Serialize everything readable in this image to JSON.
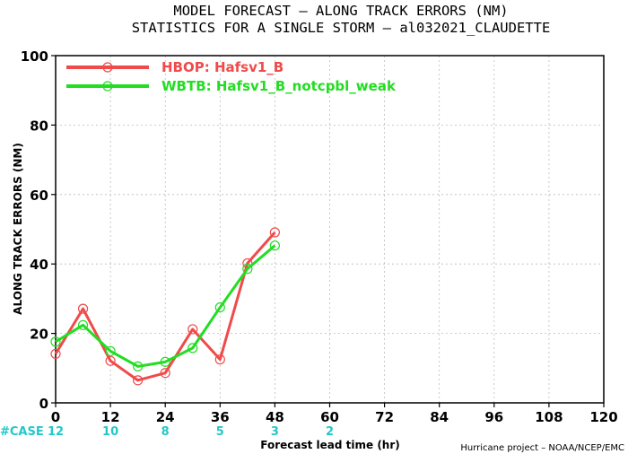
{
  "chart_data": {
    "type": "line",
    "title": "MODEL FORECAST – ALONG TRACK ERRORS (NM)",
    "subtitle": "STATISTICS FOR A SINGLE STORM – al032021_CLAUDETTE",
    "xlabel": "Forecast lead time (hr)",
    "ylabel": "ALONG TRACK ERRORS (NM)",
    "xlim": [
      0,
      120
    ],
    "ylim": [
      0,
      100
    ],
    "x_ticks": [
      "0",
      "12",
      "24",
      "36",
      "48",
      "60",
      "72",
      "84",
      "96",
      "108",
      "120"
    ],
    "y_ticks": [
      "0",
      "20",
      "40",
      "60",
      "80",
      "100"
    ],
    "grid": true,
    "legend_position": "top-left",
    "series": [
      {
        "name": "HBOP: Hafsv1_B",
        "color": "#f04a4a",
        "x": [
          0,
          6,
          12,
          18,
          24,
          30,
          36,
          42,
          48
        ],
        "y": [
          14.1,
          27.1,
          12.1,
          6.5,
          8.6,
          21.2,
          12.5,
          40.2,
          49.1
        ]
      },
      {
        "name": "WBTB: Hafsv1_B_notcpbl_weak",
        "color": "#22dd22",
        "x": [
          0,
          6,
          12,
          18,
          24,
          30,
          36,
          42,
          48
        ],
        "y": [
          17.6,
          22.4,
          14.9,
          10.5,
          11.8,
          15.8,
          27.5,
          38.6,
          45.3
        ]
      }
    ],
    "case_counts": {
      "label": "#CASE",
      "label_color": "#22c8c8",
      "x": [
        0,
        12,
        24,
        36,
        48,
        60
      ],
      "values": [
        "12",
        "10",
        "8",
        "5",
        "3",
        "2"
      ]
    },
    "credit": "Hurricane project – NOAA/NCEP/EMC"
  }
}
